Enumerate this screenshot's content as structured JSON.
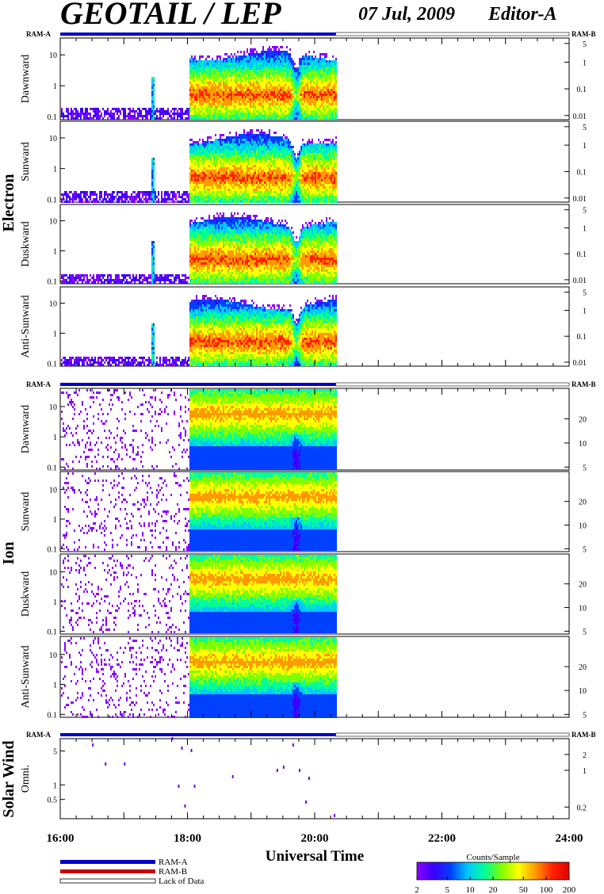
{
  "header": {
    "title": "GEOTAIL / LEP",
    "date": "07 Jul, 2009",
    "editor": "Editor-A"
  },
  "ram": {
    "left_label": "RAM-A",
    "right_label": "RAM-B",
    "mode_end_hour": 20.33
  },
  "groups": {
    "electron": "Electron",
    "ion": "Ion",
    "solar_wind": "Solar Wind"
  },
  "panels": {
    "electron": [
      "Dawnward",
      "Sunward",
      "Duskward",
      "Anti-Sunward"
    ],
    "ion": [
      "Dawnward",
      "Sunward",
      "Duskward",
      "Anti-Sunward"
    ],
    "solar_wind": [
      "Omni."
    ]
  },
  "chart_data": {
    "type": "heatmap",
    "xlabel": "Universal Time",
    "x_ticks": [
      "16:00",
      "18:00",
      "20:00",
      "22:00",
      "24:00"
    ],
    "xlim": [
      "16:00",
      "24:00"
    ],
    "data_end": "20:20",
    "electron": {
      "left_ticks": [
        "10",
        "1",
        "0.1"
      ],
      "right_ticks": [
        "5",
        "1",
        "0.1",
        "0.01"
      ],
      "energy_range_left": [
        0.08,
        35
      ],
      "energy_range_right": [
        0.007,
        8
      ]
    },
    "ion": {
      "left_ticks": [
        "10",
        "1",
        "0.1"
      ],
      "right_ticks": [
        "20",
        "10",
        "5"
      ],
      "energy_range_left": [
        0.08,
        40
      ],
      "energy_range_right": [
        4.6,
        48
      ]
    },
    "solar_wind": {
      "left_ticks": [
        "5",
        "1",
        "0.5"
      ],
      "right_ticks": [
        "2",
        "1",
        "0.2"
      ],
      "energy_range_left": [
        0.2,
        9
      ],
      "energy_range_right": [
        0.12,
        4
      ]
    },
    "features": {
      "electron_spike_hour": 17.45,
      "plasma_onset_hour": 18.03,
      "dropout_hour": 19.7
    },
    "colorbar": {
      "title": "Counts/Sample",
      "ticks": [
        "2",
        "5",
        "10",
        "20",
        "50",
        "100",
        "200"
      ],
      "range": [
        2,
        200
      ],
      "scale": "log",
      "colors": [
        "#8a00ff",
        "#3a00ff",
        "#0040ff",
        "#00c8ff",
        "#00ff9a",
        "#80ff00",
        "#ffff00",
        "#ff9a00",
        "#ff2200",
        "#e00000"
      ]
    }
  },
  "legend": {
    "ram_a": "RAM-A",
    "ram_b": "RAM-B",
    "lack": "Lack of Data",
    "ram_a_color": "#0000cc",
    "ram_b_color": "#cc0000"
  }
}
